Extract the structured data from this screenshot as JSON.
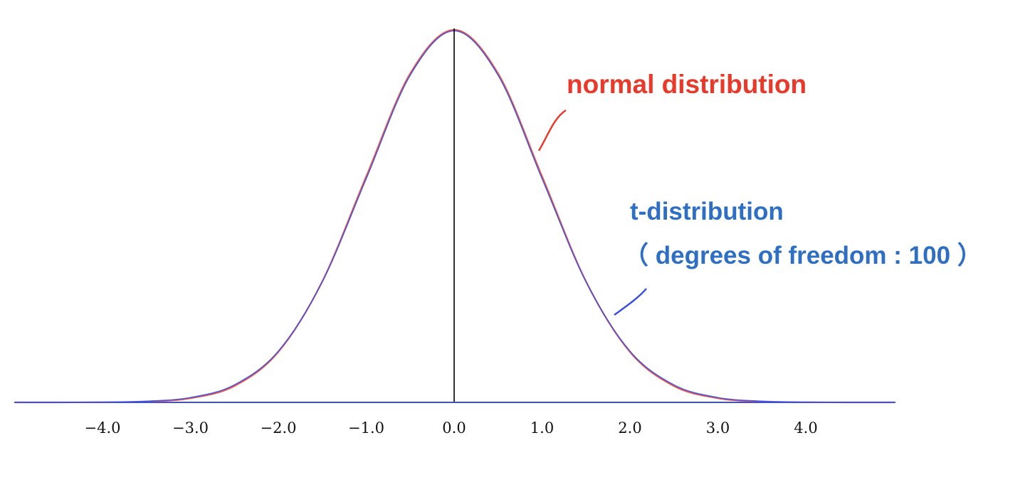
{
  "chart_data": {
    "type": "line",
    "title": "",
    "xlabel": "",
    "ylabel": "",
    "xlim": [
      -5.0,
      5.0
    ],
    "ylim": [
      0,
      0.42
    ],
    "grid": false,
    "x_ticks": [
      -4.0,
      -3.0,
      -2.0,
      -1.0,
      0.0,
      1.0,
      2.0,
      3.0,
      4.0
    ],
    "x_tick_labels": [
      "−4.0",
      "−3.0",
      "−2.0",
      "−1.0",
      "0.0",
      "1.0",
      "2.0",
      "3.0",
      "4.0"
    ],
    "x": [
      -5.0,
      -4.5,
      -4.0,
      -3.5,
      -3.0,
      -2.5,
      -2.0,
      -1.5,
      -1.0,
      -0.5,
      0.0,
      0.5,
      1.0,
      1.5,
      2.0,
      2.5,
      3.0,
      3.5,
      4.0,
      4.5,
      5.0
    ],
    "series": [
      {
        "name": "normal distribution",
        "color": "#e8392a",
        "values": [
          1.5e-06,
          1.6e-05,
          0.000134,
          0.000873,
          0.00443,
          0.0175,
          0.054,
          0.1295,
          0.242,
          0.3521,
          0.3989,
          0.3521,
          0.242,
          0.1295,
          0.054,
          0.0175,
          0.00443,
          0.000873,
          0.000134,
          1.6e-05,
          1.5e-06
        ]
      },
      {
        "name": "t-distribution（ degrees of freedom : 100 ）",
        "color": "#3b4fe0",
        "values": [
          5.7e-06,
          4.07e-05,
          0.000243,
          0.00128,
          0.00514,
          0.0187,
          0.0548,
          0.1291,
          0.2396,
          0.3503,
          0.3979,
          0.3503,
          0.2396,
          0.1291,
          0.0548,
          0.0187,
          0.00514,
          0.00128,
          0.000243,
          4.07e-05,
          5.7e-06
        ]
      }
    ],
    "annotations": {
      "normal": "normal distribution",
      "t_line1": "t-distribution",
      "t_line2": "（ degrees of freedom : 100 ）"
    },
    "annotation_colors": {
      "normal": "#e8392a",
      "t": "#2e6fc4"
    },
    "axis_color": "#000000",
    "baseline_color": "#3b4fe0"
  }
}
